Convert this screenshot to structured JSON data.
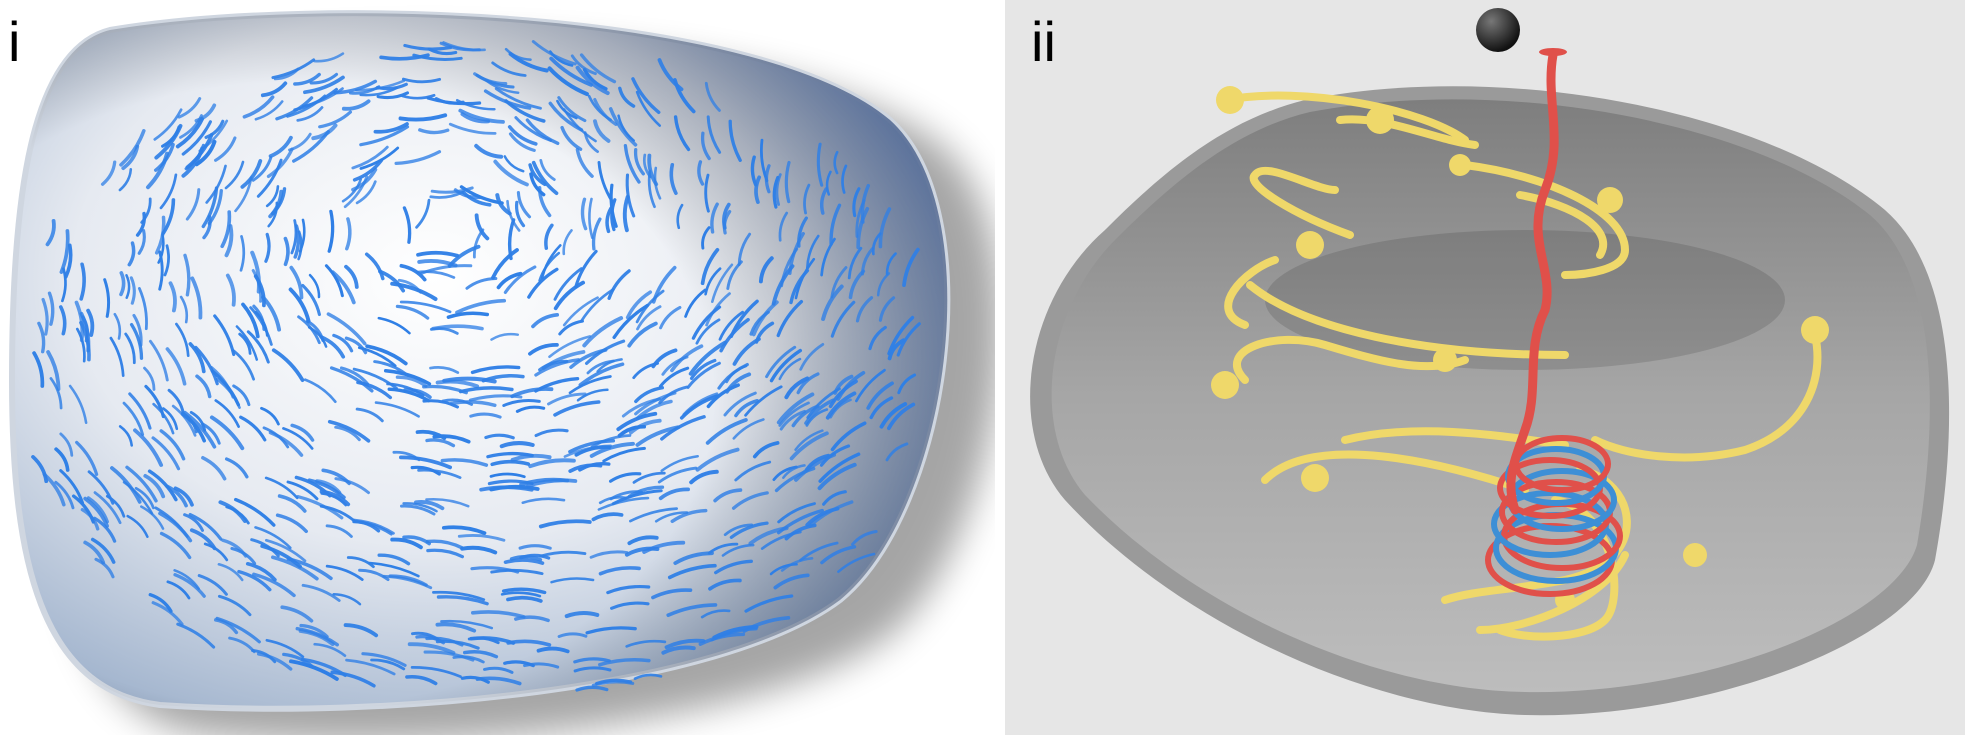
{
  "panels": [
    {
      "label": "i",
      "fiber_color": "#2f7fe6",
      "dish_color": "#eef1f6"
    },
    {
      "label": "ii",
      "dish_color": "#b3b3b3",
      "background": "#e6e6e6",
      "filament_color": "#efd86a",
      "polymer_color": "#e0504a",
      "coil_color_2": "#3d8fd6",
      "sphere_color": "#222222"
    }
  ]
}
